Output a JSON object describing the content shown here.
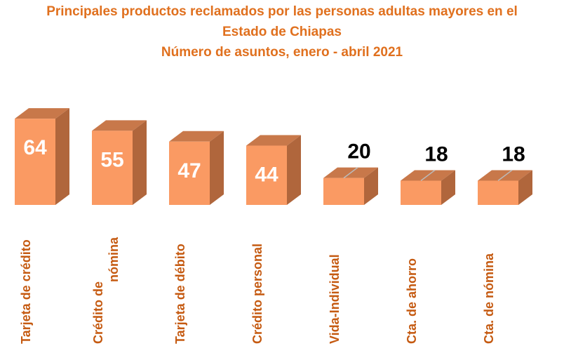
{
  "chart_data": {
    "type": "bar",
    "title_lines": [
      "Principales productos reclamados por las personas adultas mayores en el",
      "Estado de Chiapas",
      "Número de asuntos, enero - abril 2021"
    ],
    "categories": [
      [
        "Tarjeta de crédito"
      ],
      [
        "Crédito de",
        "nómina"
      ],
      [
        "Tarjeta de débito"
      ],
      [
        "Crédito personal"
      ],
      [
        "Vida-Individual"
      ],
      [
        "Cta. de ahorro"
      ],
      [
        "Cta. de nómina"
      ]
    ],
    "values": [
      64,
      55,
      47,
      44,
      20,
      18,
      18
    ],
    "colors": {
      "front": "#fa9a63",
      "side": "#b0663c",
      "top": "#c8784a",
      "label_text": "#c55a11"
    }
  }
}
